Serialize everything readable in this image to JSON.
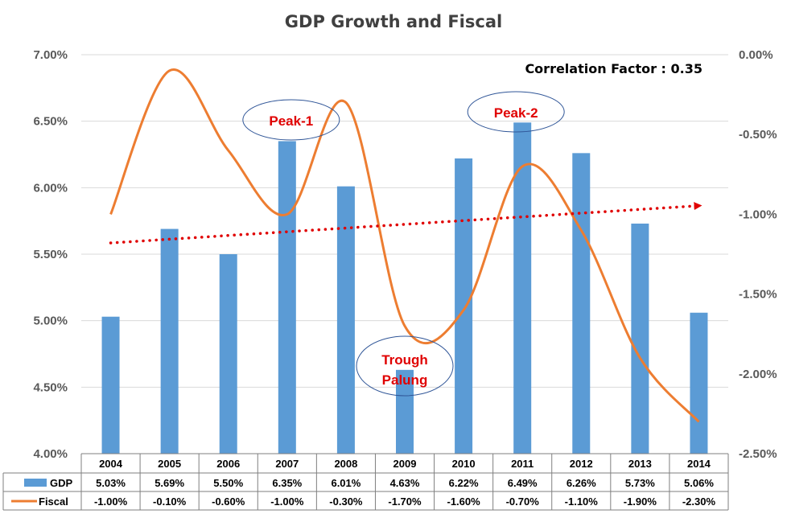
{
  "chart_data": {
    "type": "bar",
    "title": "GDP Growth and Fiscal",
    "categories": [
      "2004",
      "2005",
      "2006",
      "2007",
      "2008",
      "2009",
      "2010",
      "2011",
      "2012",
      "2013",
      "2014"
    ],
    "series": [
      {
        "name": "GDP",
        "type": "bar",
        "axis": "left",
        "color": "#5b9bd5",
        "values": [
          5.03,
          5.69,
          5.5,
          6.35,
          6.01,
          4.63,
          6.22,
          6.49,
          6.26,
          5.73,
          5.06
        ],
        "labels": [
          "5.03%",
          "5.69%",
          "5.50%",
          "6.35%",
          "6.01%",
          "4.63%",
          "6.22%",
          "6.49%",
          "6.26%",
          "5.73%",
          "5.06%"
        ]
      },
      {
        "name": "Fiscal",
        "type": "line",
        "smooth": true,
        "axis": "right",
        "color": "#ed7d31",
        "values": [
          -1.0,
          -0.1,
          -0.6,
          -1.0,
          -0.3,
          -1.7,
          -1.6,
          -0.7,
          -1.1,
          -1.9,
          -2.3
        ],
        "labels": [
          "-1.00%",
          "-0.10%",
          "-0.60%",
          "-1.00%",
          "-0.30%",
          "-1.70%",
          "-1.60%",
          "-0.70%",
          "-1.10%",
          "-1.90%",
          "-2.30%"
        ]
      }
    ],
    "y_left": {
      "min": 4.0,
      "max": 7.0,
      "ticks": [
        4.0,
        4.5,
        5.0,
        5.5,
        6.0,
        6.5,
        7.0
      ],
      "tick_labels": [
        "4.00%",
        "4.50%",
        "5.00%",
        "5.50%",
        "6.00%",
        "6.50%",
        "7.00%"
      ]
    },
    "y_right": {
      "min": -2.5,
      "max": 0.0,
      "ticks": [
        -2.5,
        -2.0,
        -1.5,
        -1.0,
        -0.5,
        0.0
      ],
      "tick_labels": [
        "-2.50%",
        "-2.00%",
        "-1.50%",
        "-1.00%",
        "-0.50%",
        "0.00%"
      ]
    },
    "grid": true,
    "legend": "data-table",
    "trendline": {
      "type": "linear",
      "style": "dotted",
      "color": "#e00000",
      "arrow": true
    },
    "annotations": [
      {
        "text": "Correlation  Factor : 0.35",
        "color": "#000000"
      },
      {
        "text": "Peak-1",
        "category": "2007",
        "shape": "ellipse",
        "color": "#e00000"
      },
      {
        "text": "Peak-2",
        "category": "2011",
        "shape": "ellipse",
        "color": "#e00000"
      },
      {
        "text": "Trough",
        "category": "2009",
        "shape": "ellipse",
        "color": "#e00000"
      },
      {
        "text": "Palung",
        "category": "2009",
        "shape": "ellipse",
        "color": "#e00000"
      }
    ]
  }
}
